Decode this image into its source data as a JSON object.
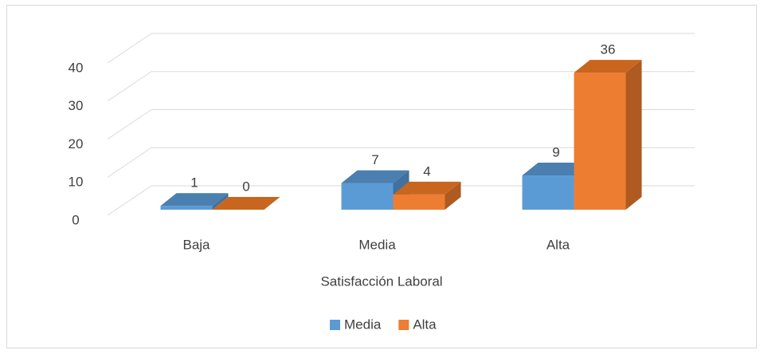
{
  "chart_data": {
    "type": "bar3d",
    "x_label": "Satisfacción Laboral",
    "categories": [
      "Baja",
      "Media",
      "Alta"
    ],
    "series": [
      {
        "name": "Media",
        "color": "#5b9bd5",
        "side": "#41719c",
        "top": "#4a7fb0",
        "values": [
          1,
          7,
          9
        ]
      },
      {
        "name": "Alta",
        "color": "#ed7d31",
        "side": "#ae5a21",
        "top": "#c8661f",
        "values": [
          0,
          4,
          36
        ]
      }
    ],
    "ylim": [
      0,
      40
    ],
    "yticks": [
      0,
      10,
      20,
      30,
      40
    ],
    "grid": true
  }
}
